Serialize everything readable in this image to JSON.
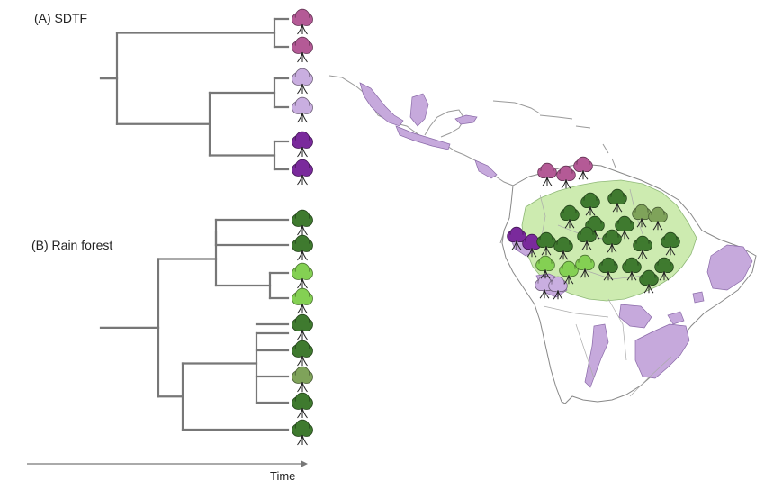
{
  "panels": {
    "sdtf_label": "(A) SDTF",
    "rainforest_label": "(B) Rain forest"
  },
  "axis": {
    "time_label": "Time"
  },
  "colors": {
    "branch": "#777777",
    "sdtf_pink": "#b45a96",
    "sdtf_lilac": "#c9aee0",
    "sdtf_purple": "#7a2a9c",
    "rf_dark_green": "#3f7a2f",
    "rf_light_green": "#84d053",
    "rf_olive_green": "#7fa35a",
    "rainforest_area": "#cdebb0",
    "sdtf_area": "#c6a9dc",
    "coastline": "#888888"
  },
  "sdtf_tree": {
    "tips": [
      "sdtf_pink",
      "sdtf_pink",
      "sdtf_lilac",
      "sdtf_lilac",
      "sdtf_purple",
      "sdtf_purple"
    ]
  },
  "rainforest_tree": {
    "tips": [
      "rf_dark_green",
      "rf_dark_green",
      "rf_light_green",
      "rf_light_green",
      "rf_dark_green",
      "rf_dark_green",
      "rf_olive_green",
      "rf_dark_green",
      "rf_dark_green"
    ]
  },
  "map": {
    "tree_icon": "tree-icon",
    "sdtf_icons": [
      "sdtf_pink",
      "sdtf_pink",
      "sdtf_pink",
      "sdtf_purple",
      "sdtf_purple",
      "sdtf_lilac",
      "sdtf_lilac"
    ],
    "rainforest_icons": [
      "rf_dark_green",
      "rf_dark_green",
      "rf_dark_green",
      "rf_olive_green",
      "rf_olive_green",
      "rf_dark_green",
      "rf_dark_green",
      "rf_dark_green",
      "rf_dark_green",
      "rf_dark_green",
      "rf_dark_green",
      "rf_dark_green",
      "rf_dark_green",
      "rf_light_green",
      "rf_light_green",
      "rf_light_green",
      "rf_dark_green",
      "rf_dark_green",
      "rf_dark_green",
      "rf_dark_green"
    ]
  }
}
